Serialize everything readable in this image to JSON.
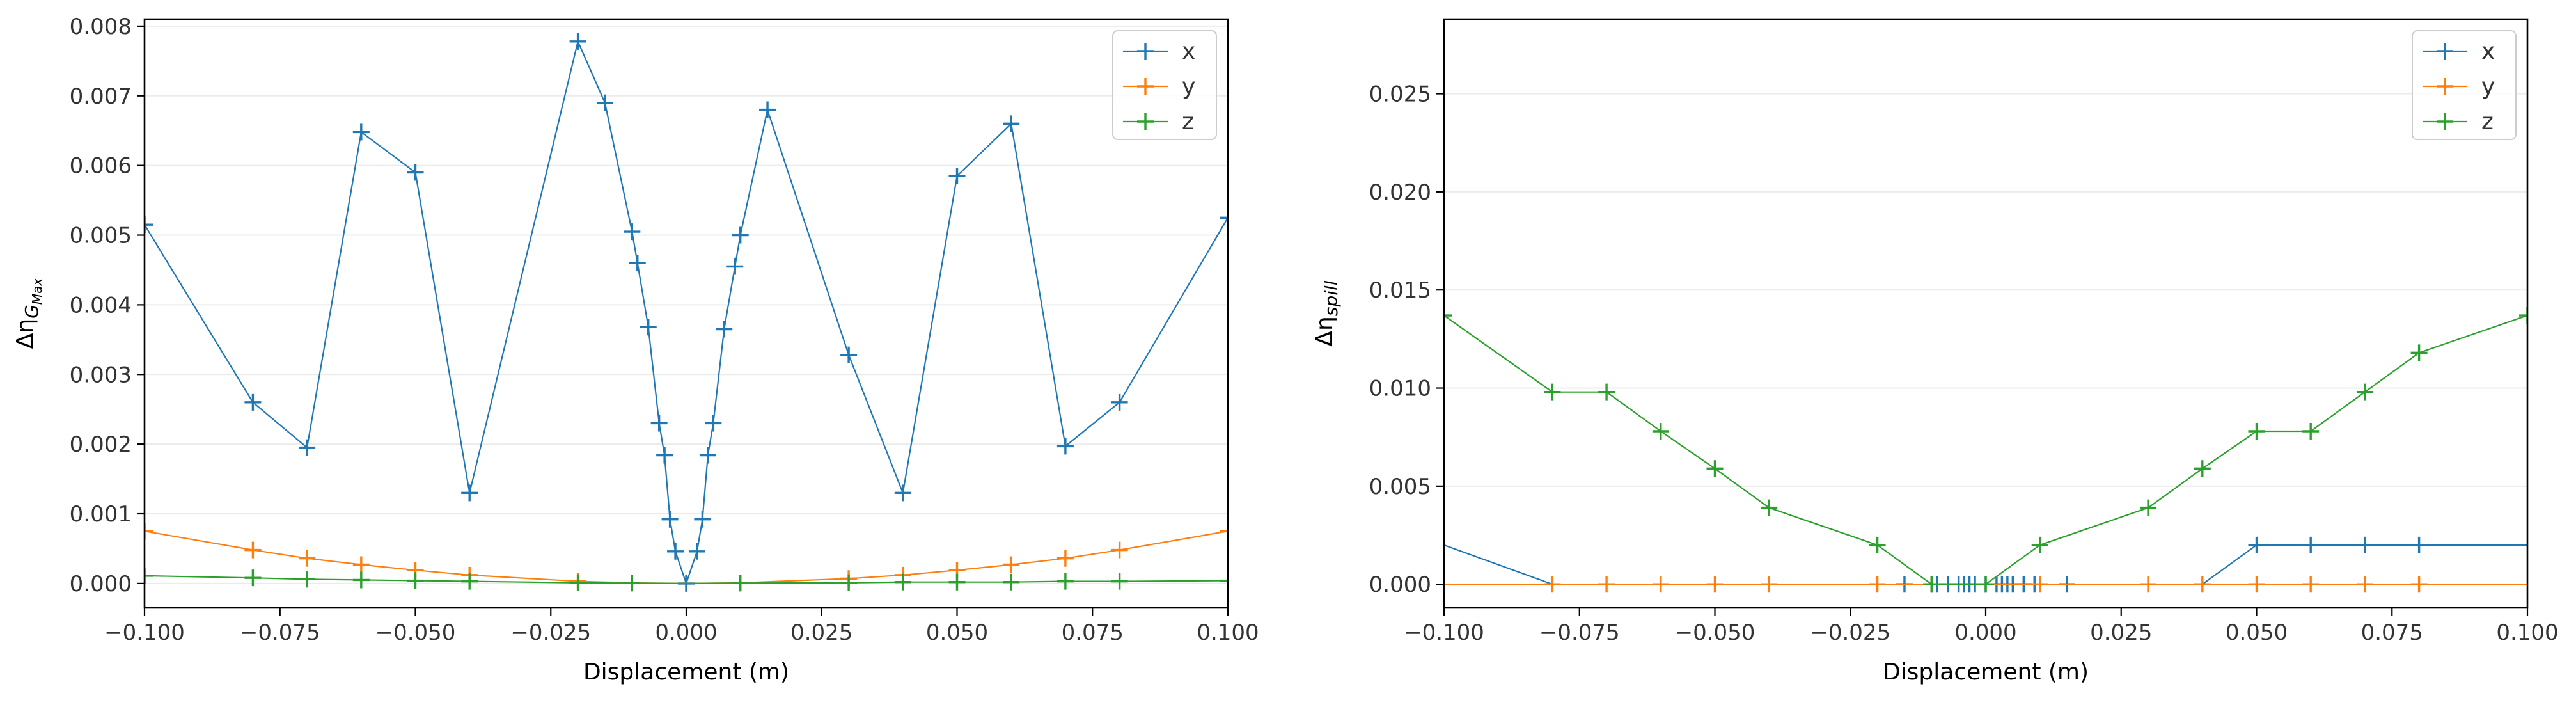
{
  "chart_data": [
    {
      "type": "line",
      "title": "",
      "xlabel": "Displacement (m)",
      "ylabel": "Δη_GMax",
      "ylabel_main": "Δη",
      "ylabel_sub": "G",
      "ylabel_subsub": "Max",
      "xlim": [
        -0.1,
        0.1
      ],
      "ylim": [
        -0.00035,
        0.0081
      ],
      "grid": "horizontal",
      "legend_position": "top-right",
      "xticks": [
        -0.1,
        -0.075,
        -0.05,
        -0.025,
        0.0,
        0.025,
        0.05,
        0.075,
        0.1
      ],
      "xtick_labels": [
        "−0.100",
        "−0.075",
        "−0.050",
        "−0.025",
        "0.000",
        "0.025",
        "0.050",
        "0.075",
        "0.100"
      ],
      "yticks": [
        0.0,
        0.001,
        0.002,
        0.003,
        0.004,
        0.005,
        0.006,
        0.007,
        0.008
      ],
      "ytick_labels": [
        "0.000",
        "0.001",
        "0.002",
        "0.003",
        "0.004",
        "0.005",
        "0.006",
        "0.007",
        "0.008"
      ],
      "series": [
        {
          "name": "x",
          "color": "#1f77b4",
          "x": [
            -0.1,
            -0.08,
            -0.07,
            -0.06,
            -0.05,
            -0.04,
            -0.02,
            -0.015,
            -0.01,
            -0.009,
            -0.007,
            -0.005,
            -0.004,
            -0.003,
            -0.002,
            0.0,
            0.002,
            0.003,
            0.004,
            0.005,
            0.007,
            0.009,
            0.01,
            0.015,
            0.03,
            0.04,
            0.05,
            0.06,
            0.07,
            0.08,
            0.1
          ],
          "y": [
            0.00515,
            0.0026,
            0.00195,
            0.00648,
            0.0059,
            0.0013,
            0.00778,
            0.0069,
            0.00505,
            0.0046,
            0.00368,
            0.0023,
            0.00184,
            0.00092,
            0.00046,
            0.0,
            0.00046,
            0.00092,
            0.00184,
            0.0023,
            0.00365,
            0.00455,
            0.005,
            0.0068,
            0.00328,
            0.0013,
            0.00585,
            0.0066,
            0.00197,
            0.0026,
            0.00525
          ]
        },
        {
          "name": "y",
          "color": "#ff7f0e",
          "x": [
            -0.1,
            -0.08,
            -0.07,
            -0.06,
            -0.05,
            -0.04,
            -0.02,
            -0.01,
            0.0,
            0.01,
            0.03,
            0.04,
            0.05,
            0.06,
            0.07,
            0.08,
            0.1
          ],
          "y": [
            0.00075,
            0.00048,
            0.00036,
            0.00027,
            0.00019,
            0.00012,
            3e-05,
            8e-06,
            0.0,
            8e-06,
            7e-05,
            0.00012,
            0.00019,
            0.00027,
            0.00036,
            0.00048,
            0.00075
          ],
          "marker_x": [
            -0.1,
            -0.08,
            -0.07,
            -0.06,
            -0.05,
            -0.04,
            -0.02,
            -0.01,
            0.01,
            0.03,
            0.04,
            0.05,
            0.06,
            0.07,
            0.08,
            0.1
          ]
        },
        {
          "name": "z",
          "color": "#2ca02c",
          "x": [
            -0.1,
            -0.08,
            -0.07,
            -0.06,
            -0.05,
            -0.04,
            -0.02,
            -0.01,
            0.0,
            0.01,
            0.03,
            0.04,
            0.05,
            0.06,
            0.07,
            0.08,
            0.1
          ],
          "y": [
            0.00011,
            8e-05,
            6e-05,
            5e-05,
            4e-05,
            3e-05,
            1e-05,
            5e-06,
            0.0,
            5e-06,
            1e-05,
            2e-05,
            2e-05,
            2e-05,
            3e-05,
            3e-05,
            4e-05
          ],
          "marker_x": [
            -0.1,
            -0.08,
            -0.07,
            -0.06,
            -0.05,
            -0.04,
            -0.02,
            -0.01,
            0.01,
            0.03,
            0.04,
            0.05,
            0.06,
            0.07,
            0.08,
            0.1
          ]
        }
      ]
    },
    {
      "type": "line",
      "title": "",
      "xlabel": "Displacement (m)",
      "ylabel": "Δη_spill",
      "ylabel_main": "Δη",
      "ylabel_sub": "spill",
      "ylabel_subsub": "",
      "xlim": [
        -0.1,
        0.1
      ],
      "ylim": [
        -0.0012,
        0.0288
      ],
      "grid": "horizontal",
      "legend_position": "top-right",
      "xticks": [
        -0.1,
        -0.075,
        -0.05,
        -0.025,
        0.0,
        0.025,
        0.05,
        0.075,
        0.1
      ],
      "xtick_labels": [
        "−0.100",
        "−0.075",
        "−0.050",
        "−0.025",
        "0.000",
        "0.025",
        "0.050",
        "0.075",
        "0.100"
      ],
      "yticks": [
        0.0,
        0.005,
        0.01,
        0.015,
        0.02,
        0.025
      ],
      "ytick_labels": [
        "0.000",
        "0.005",
        "0.010",
        "0.015",
        "0.020",
        "0.025"
      ],
      "series": [
        {
          "name": "x",
          "color": "#1f77b4",
          "x": [
            -0.1,
            -0.08,
            -0.07,
            -0.06,
            -0.05,
            -0.04,
            -0.02,
            -0.015,
            -0.01,
            -0.009,
            -0.007,
            -0.005,
            -0.004,
            -0.003,
            -0.002,
            0.0,
            0.002,
            0.003,
            0.004,
            0.005,
            0.007,
            0.009,
            0.01,
            0.015,
            0.03,
            0.04,
            0.05,
            0.06,
            0.07,
            0.08,
            0.1
          ],
          "y": [
            0.002,
            0.0,
            0.0,
            0.0,
            0.0,
            0.0,
            0.0,
            0.0,
            0.0,
            0.0,
            0.0,
            0.0,
            0.0,
            0.0,
            0.0,
            0.0,
            0.0,
            0.0,
            0.0,
            0.0,
            0.0,
            0.0,
            0.0,
            0.0,
            0.0,
            0.0,
            0.002,
            0.002,
            0.002,
            0.002,
            0.002
          ],
          "marker_x": [
            -0.015,
            -0.01,
            -0.009,
            -0.007,
            -0.005,
            -0.004,
            -0.003,
            -0.002,
            0.0,
            0.002,
            0.003,
            0.004,
            0.005,
            0.007,
            0.009,
            0.015,
            0.05,
            0.06,
            0.07,
            0.08
          ]
        },
        {
          "name": "y",
          "color": "#ff7f0e",
          "x": [
            -0.1,
            -0.08,
            -0.07,
            -0.06,
            -0.05,
            -0.04,
            -0.02,
            -0.01,
            0.0,
            0.01,
            0.03,
            0.04,
            0.05,
            0.06,
            0.07,
            0.08,
            0.1
          ],
          "y": [
            0.0,
            0.0,
            0.0,
            0.0,
            0.0,
            0.0,
            0.0,
            0.0,
            0.0,
            0.0,
            0.0,
            0.0,
            0.0,
            0.0,
            0.0,
            0.0,
            0.0
          ],
          "marker_x": [
            -0.08,
            -0.07,
            -0.06,
            -0.05,
            -0.04,
            -0.02,
            -0.01,
            0.01,
            0.03,
            0.04,
            0.05,
            0.06,
            0.07,
            0.08
          ]
        },
        {
          "name": "z",
          "color": "#2ca02c",
          "x": [
            -0.1,
            -0.08,
            -0.07,
            -0.06,
            -0.05,
            -0.04,
            -0.02,
            -0.01,
            0.0,
            0.01,
            0.03,
            0.04,
            0.05,
            0.06,
            0.07,
            0.08,
            0.1
          ],
          "y": [
            0.0137,
            0.0098,
            0.0098,
            0.0078,
            0.0059,
            0.0039,
            0.002,
            0.0,
            0.0,
            0.002,
            0.0039,
            0.0059,
            0.0078,
            0.0078,
            0.0098,
            0.0118,
            0.0137
          ],
          "marker_x": [
            -0.1,
            -0.08,
            -0.07,
            -0.06,
            -0.05,
            -0.04,
            -0.02,
            -0.01,
            0.0,
            0.01,
            0.03,
            0.04,
            0.05,
            0.06,
            0.07,
            0.08,
            0.1
          ]
        }
      ]
    }
  ]
}
